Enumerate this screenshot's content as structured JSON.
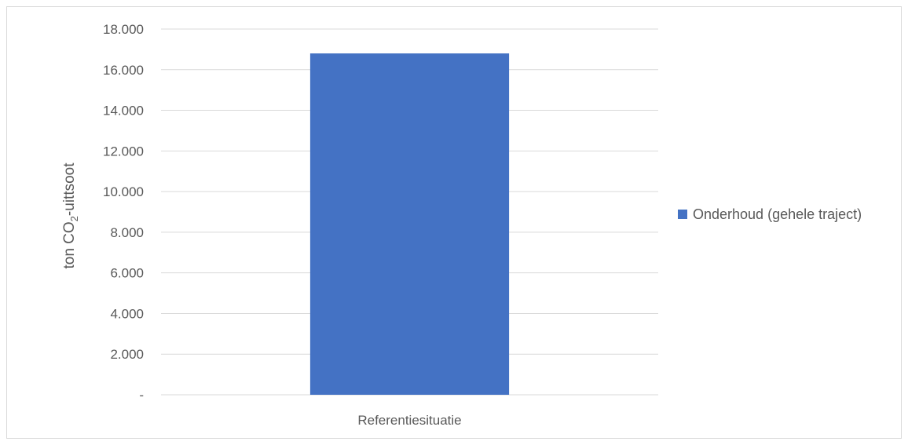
{
  "chart_data": {
    "type": "bar",
    "categories": [
      "Referentiesituatie"
    ],
    "series": [
      {
        "name": "Onderhoud (gehele traject)",
        "values": [
          16800
        ],
        "color": "#4472C4"
      }
    ],
    "ylabel_main": "ton CO",
    "ylabel_sub": "2",
    "ylabel_tail": "-uittsoot",
    "ylim": [
      0,
      18000
    ],
    "yticks": [
      0,
      2000,
      4000,
      6000,
      8000,
      10000,
      12000,
      14000,
      16000,
      18000
    ],
    "ytick_labels": [
      "-",
      "2.000",
      "4.000",
      "6.000",
      "8.000",
      "10.000",
      "12.000",
      "14.000",
      "16.000",
      "18.000"
    ],
    "grid": true,
    "legend_position": "right",
    "grid_color": "#d9d9d9",
    "text_color": "#595959"
  }
}
